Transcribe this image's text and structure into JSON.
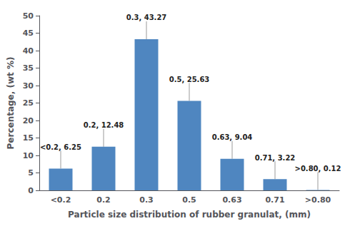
{
  "chart_data": {
    "type": "bar",
    "categories": [
      "<0.2",
      "0.2",
      "0.3",
      "0.5",
      "0.63",
      "0.71",
      ">0.80"
    ],
    "values": [
      6.25,
      12.48,
      43.27,
      25.63,
      9.04,
      3.22,
      0.12
    ],
    "color": "#4f86c0",
    "xlabel": "Particle size distribution of rubber granulat, (mm)",
    "ylabel": "Percentage, (wt %)",
    "ylim": [
      0,
      50
    ],
    "yticks": [
      0,
      5,
      10,
      15,
      20,
      25,
      30,
      35,
      40,
      45,
      50
    ],
    "grid": false,
    "annotations": [
      {
        "label": "<0.2, 6.25",
        "x": "<0.2",
        "y": 6.25
      },
      {
        "label": "0.2, 12.48",
        "x": "0.2",
        "y": 12.48
      },
      {
        "label": "0.3, 43.27",
        "x": "0.3",
        "y": 43.27
      },
      {
        "label": "0.5, 25.63",
        "x": "0.5",
        "y": 25.63
      },
      {
        "label": "0.63, 9.04",
        "x": "0.63",
        "y": 9.04
      },
      {
        "label": "0.71, 3.22",
        "x": "0.71",
        "y": 3.22
      },
      {
        "label": ">0.80, 0.12",
        "x": ">0.80",
        "y": 0.12
      }
    ]
  }
}
